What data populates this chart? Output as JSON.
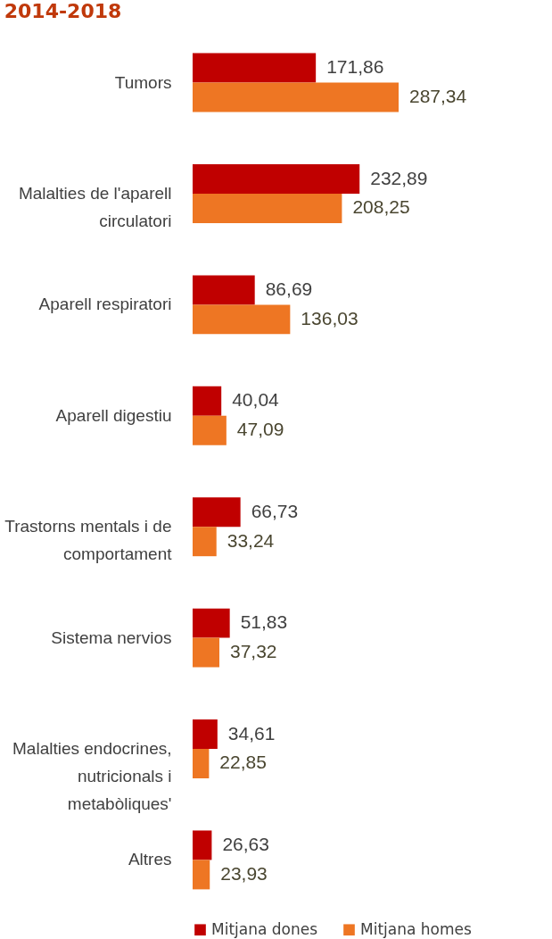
{
  "chart_data": {
    "type": "bar",
    "orientation": "horizontal",
    "title": "2014-2018",
    "categories": [
      "Tumors",
      "Malalties de l'aparell circulatori",
      "Aparell respiratori",
      "Aparell digestiu",
      "Trastorns mentals i de comportament",
      "Sistema nervios",
      "Malalties endocrines, nutricionals i metabòliques'",
      "Altres"
    ],
    "series": [
      {
        "name": "Mitjana dones",
        "color": "#c00000",
        "values": [
          171.86,
          232.89,
          86.69,
          40.04,
          66.73,
          51.83,
          34.61,
          26.63
        ],
        "value_labels": [
          "171,86",
          "232,89",
          "86,69",
          "40,04",
          "66,73",
          "51,83",
          "34,61",
          "26,63"
        ]
      },
      {
        "name": "Mitjana homes",
        "color": "#ee7623",
        "values": [
          287.34,
          208.25,
          136.03,
          47.09,
          33.24,
          37.32,
          22.85,
          23.93
        ],
        "value_labels": [
          "287,34",
          "208,25",
          "136,03",
          "47,09",
          "33,24",
          "37,32",
          "22,85",
          "23,93"
        ]
      }
    ],
    "tick_labels": "y",
    "legend": "bottom"
  }
}
